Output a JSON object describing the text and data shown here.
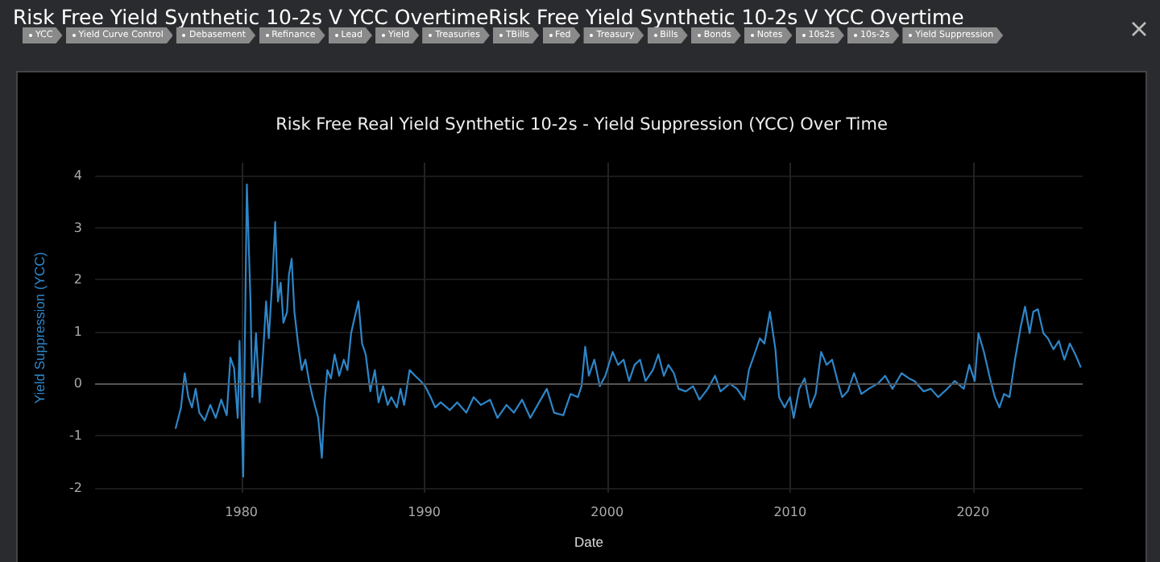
{
  "chart_data": {
    "type": "line",
    "title": "Risk Free Real Yield Synthetic 10-2s - Yield Suppression (YCC) Over Time",
    "xlabel": "Date",
    "ylabel": "Yield Suppression (YCC)",
    "annotations": [
      "Risk Free Yield Synthetic 10-2s V YCC OvertimeRisk Free Yield Synthetic 10-2s V YCC Overtime",
      "YCC",
      "Yield Curve Control",
      "Debasement",
      "Refinance",
      "Lead",
      "Yield",
      "Treasuries",
      "TBills",
      "Fed",
      "Treasury",
      "Bills",
      "Bonds",
      "Notes",
      "10s2s",
      "10s-2s",
      "Yield Suppression"
    ],
    "x": [
      1976.4,
      1976.7,
      1976.9,
      1977.1,
      1977.3,
      1977.5,
      1977.7,
      1978.0,
      1978.3,
      1978.6,
      1978.9,
      1979.2,
      1979.4,
      1979.6,
      1979.8,
      1979.9,
      1980.1,
      1980.3,
      1980.5,
      1980.6,
      1980.8,
      1981.0,
      1981.2,
      1981.35,
      1981.5,
      1981.7,
      1981.85,
      1982.0,
      1982.15,
      1982.3,
      1982.5,
      1982.6,
      1982.75,
      1982.9,
      1983.1,
      1983.3,
      1983.5,
      1983.7,
      1983.9,
      1984.2,
      1984.4,
      1984.55,
      1984.7,
      1984.9,
      1985.1,
      1985.35,
      1985.6,
      1985.8,
      1986.0,
      1986.2,
      1986.4,
      1986.6,
      1986.8,
      1987.05,
      1987.3,
      1987.5,
      1987.75,
      1988.0,
      1988.2,
      1988.5,
      1988.7,
      1988.9,
      1989.2,
      1989.5,
      1989.8,
      1990.05,
      1990.35,
      1990.6,
      1990.9,
      1991.4,
      1991.8,
      1992.3,
      1992.7,
      1993.1,
      1993.6,
      1994.0,
      1994.5,
      1994.9,
      1995.35,
      1995.8,
      1996.2,
      1996.7,
      1997.1,
      1997.6,
      1998.0,
      1998.4,
      1998.6,
      1998.8,
      1999.0,
      1999.3,
      1999.6,
      1999.9,
      2000.3,
      2000.6,
      2000.9,
      2001.2,
      2001.5,
      2001.8,
      2002.1,
      2002.5,
      2002.8,
      2003.1,
      2003.35,
      2003.65,
      2003.9,
      2004.3,
      2004.7,
      2005.05,
      2005.5,
      2005.9,
      2006.2,
      2006.7,
      2007.1,
      2007.5,
      2007.75,
      2008.05,
      2008.35,
      2008.6,
      2008.9,
      2009.2,
      2009.4,
      2009.7,
      2010.0,
      2010.2,
      2010.5,
      2010.8,
      2011.1,
      2011.4,
      2011.7,
      2012.0,
      2012.3,
      2012.6,
      2012.85,
      2013.15,
      2013.5,
      2013.9,
      2014.3,
      2014.8,
      2015.2,
      2015.6,
      2016.1,
      2016.5,
      2016.8,
      2017.3,
      2017.7,
      2018.1,
      2018.6,
      2019.0,
      2019.5,
      2019.8,
      2020.1,
      2020.3,
      2020.6,
      2020.9,
      2021.2,
      2021.45,
      2021.7,
      2022.0,
      2022.3,
      2022.6,
      2022.85,
      2023.1,
      2023.3,
      2023.55,
      2023.85,
      2024.1,
      2024.4,
      2024.7,
      2025.0,
      2025.3,
      2025.6,
      2025.9
    ],
    "series": [
      {
        "color": "#2e86c8",
        "values": [
          -0.87,
          -0.46,
          0.2,
          -0.26,
          -0.46,
          -0.1,
          -0.56,
          -0.71,
          -0.41,
          -0.66,
          -0.31,
          -0.61,
          0.5,
          0.3,
          -0.66,
          0.82,
          -1.79,
          3.83,
          1.58,
          -0.26,
          0.97,
          -0.36,
          0.66,
          1.58,
          0.87,
          2.04,
          3.11,
          1.58,
          1.94,
          1.17,
          1.38,
          2.09,
          2.4,
          1.38,
          0.77,
          0.26,
          0.46,
          0.05,
          -0.26,
          -0.66,
          -1.43,
          -0.36,
          0.26,
          0.1,
          0.56,
          0.15,
          0.46,
          0.26,
          0.97,
          1.28,
          1.58,
          0.77,
          0.56,
          -0.15,
          0.26,
          -0.36,
          -0.05,
          -0.41,
          -0.26,
          -0.46,
          -0.1,
          -0.41,
          0.26,
          0.15,
          0.05,
          -0.05,
          -0.26,
          -0.46,
          -0.36,
          -0.51,
          -0.36,
          -0.56,
          -0.26,
          -0.41,
          -0.31,
          -0.66,
          -0.41,
          -0.56,
          -0.31,
          -0.66,
          -0.41,
          -0.1,
          -0.56,
          -0.61,
          -0.2,
          -0.26,
          -0.05,
          0.71,
          0.15,
          0.46,
          -0.05,
          0.15,
          0.61,
          0.36,
          0.46,
          0.05,
          0.36,
          0.46,
          0.05,
          0.26,
          0.56,
          0.15,
          0.36,
          0.2,
          -0.1,
          -0.15,
          -0.05,
          -0.31,
          -0.1,
          0.15,
          -0.15,
          0,
          -0.1,
          -0.31,
          0.26,
          0.56,
          0.87,
          0.77,
          1.38,
          0.66,
          -0.26,
          -0.46,
          -0.26,
          -0.66,
          -0.1,
          0.1,
          -0.46,
          -0.2,
          0.61,
          0.36,
          0.46,
          0.05,
          -0.26,
          -0.15,
          0.2,
          -0.2,
          -0.1,
          0,
          0.15,
          -0.1,
          0.2,
          0.1,
          0.05,
          -0.15,
          -0.1,
          -0.26,
          -0.1,
          0.05,
          -0.1,
          0.36,
          0.05,
          0.97,
          0.61,
          0.15,
          -0.26,
          -0.46,
          -0.2,
          -0.26,
          0.46,
          1.07,
          1.48,
          0.97,
          1.38,
          1.43,
          0.97,
          0.87,
          0.66,
          0.82,
          0.46,
          0.77,
          0.56,
          0.31
        ]
      }
    ],
    "xlim": [
      1972,
      2026
    ],
    "xticks": [
      1980,
      1990,
      2000,
      2010,
      2020
    ],
    "ylim": [
      -2.1,
      4.25
    ],
    "yticks": [
      -2,
      -1,
      0,
      1,
      2,
      3,
      4
    ],
    "ref_lines": [
      {
        "axis": "y",
        "value": 0
      }
    ],
    "grid": true,
    "marker": "none",
    "line_style": "solid"
  }
}
